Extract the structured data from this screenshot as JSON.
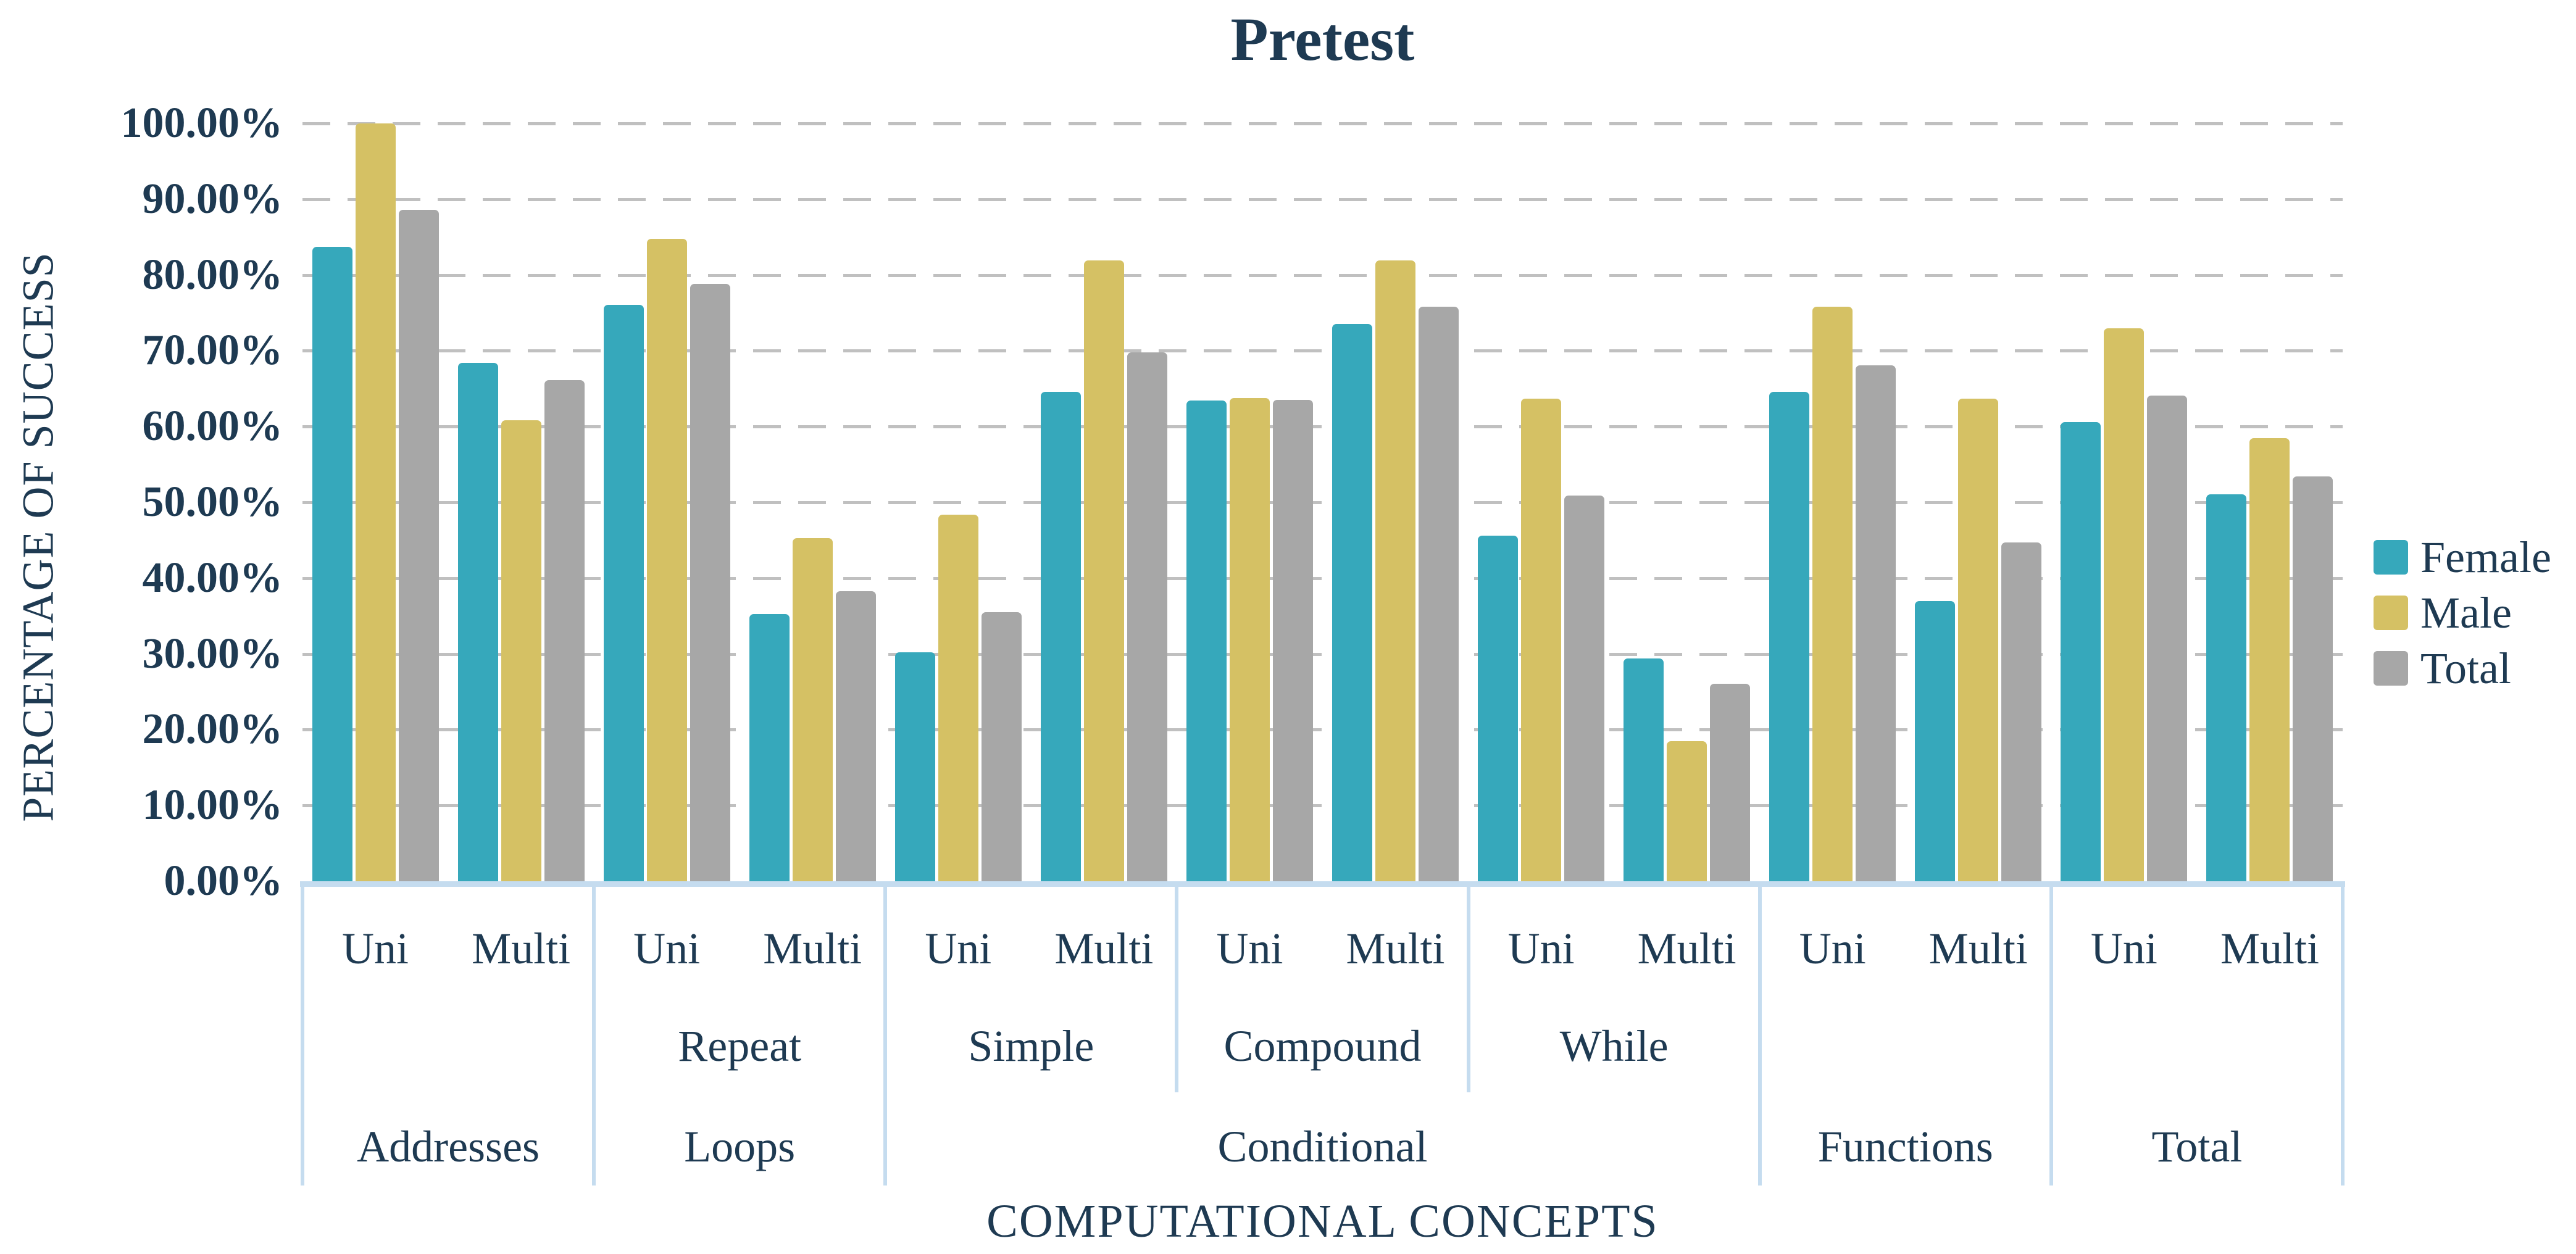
{
  "chart_data": {
    "type": "bar",
    "title": "Pretest",
    "xlabel": "COMPUTATIONAL CONCEPTS",
    "ylabel": "PERCENTAGE OF SUCCESS",
    "ylim": [
      0,
      100
    ],
    "y_tick_step": 10,
    "y_tick_labels": [
      "100.00%",
      "90.00%",
      "80.00%",
      "70.00%",
      "60.00%",
      "50.00%",
      "40.00%",
      "30.00%",
      "20.00%",
      "10.00%",
      "0.00%"
    ],
    "grid": "horizontal-dashed",
    "legend_position": "right",
    "series": [
      {
        "name": "Female",
        "color": "#36A8BB"
      },
      {
        "name": "Male",
        "color": "#D5C164"
      },
      {
        "name": "Total",
        "color": "#A7A7A7"
      }
    ],
    "sections": [
      {
        "label": "Addresses",
        "subsections": [
          {
            "label": "",
            "groups": [
              {
                "label": "Uni",
                "values": [
                  83.7,
                  100.0,
                  88.6
                ]
              },
              {
                "label": "Multi",
                "values": [
                  68.4,
                  60.8,
                  66.1
                ]
              }
            ]
          }
        ]
      },
      {
        "label": "Loops",
        "subsections": [
          {
            "label": "Repeat",
            "groups": [
              {
                "label": "Uni",
                "values": [
                  76.1,
                  84.8,
                  78.8
                ]
              },
              {
                "label": "Multi",
                "values": [
                  35.3,
                  45.3,
                  38.3
                ]
              }
            ]
          }
        ]
      },
      {
        "label": "Conditional",
        "subsections": [
          {
            "label": "Simple",
            "groups": [
              {
                "label": "Uni",
                "values": [
                  30.2,
                  48.4,
                  35.5
                ]
              },
              {
                "label": "Multi",
                "values": [
                  64.6,
                  81.9,
                  69.8
                ]
              }
            ]
          },
          {
            "label": "Compound",
            "groups": [
              {
                "label": "Uni",
                "values": [
                  63.4,
                  63.8,
                  63.5
                ]
              },
              {
                "label": "Multi",
                "values": [
                  73.5,
                  81.9,
                  75.8
                ]
              }
            ]
          },
          {
            "label": "While",
            "groups": [
              {
                "label": "Uni",
                "values": [
                  45.6,
                  63.7,
                  50.9
                ]
              },
              {
                "label": "Multi",
                "values": [
                  29.4,
                  18.5,
                  26.1
                ]
              }
            ]
          }
        ]
      },
      {
        "label": "Functions",
        "subsections": [
          {
            "label": "",
            "groups": [
              {
                "label": "Uni",
                "values": [
                  64.6,
                  75.8,
                  68.1
                ]
              },
              {
                "label": "Multi",
                "values": [
                  37.0,
                  63.7,
                  44.7
                ]
              }
            ]
          }
        ]
      },
      {
        "label": "Total",
        "subsections": [
          {
            "label": "",
            "groups": [
              {
                "label": "Uni",
                "values": [
                  60.6,
                  73.0,
                  64.1
                ]
              },
              {
                "label": "Multi",
                "values": [
                  51.1,
                  58.5,
                  53.4
                ]
              }
            ]
          }
        ]
      }
    ]
  },
  "colors": {
    "text": "#1E3A52",
    "gridline": "#C0C0C0",
    "axis_border": "#C5DCEF",
    "background": "#FFFFFF"
  }
}
